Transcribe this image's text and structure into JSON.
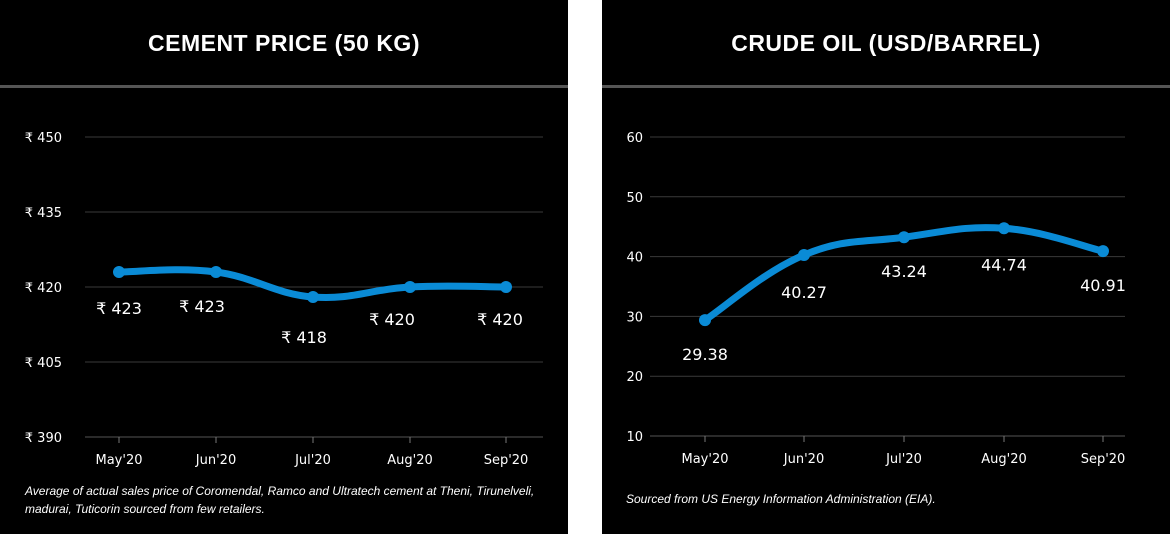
{
  "colors": {
    "line": "#0a8bd6",
    "grid": "#3a3a3a",
    "background": "#000000"
  },
  "charts": {
    "cement": {
      "title": "CEMENT PRICE (50 KG)",
      "note": "Average of actual sales price of Coromendal, Ramco and Ultratech cement at Theni, Tirunelveli, madurai, Tuticorin sourced from few retailers."
    },
    "oil": {
      "title": "CRUDE OIL (USD/BARREL)",
      "note": "Sourced from US Energy Information Administration (EIA)."
    }
  },
  "chart_data": [
    {
      "type": "line",
      "title": "CEMENT PRICE (50 KG)",
      "categories": [
        "May'20",
        "Jun'20",
        "Jul'20",
        "Aug'20",
        "Sep'20"
      ],
      "values": [
        423,
        423,
        418,
        420,
        420
      ],
      "data_labels": [
        "₹ 423",
        "₹ 423",
        "₹ 418",
        "₹ 420",
        "₹ 420"
      ],
      "yticks": [
        390,
        405,
        420,
        435,
        450
      ],
      "ytick_labels": [
        "₹ 390",
        "₹ 405",
        "₹ 420",
        "₹ 435",
        "₹ 450"
      ],
      "ylim": [
        390,
        450
      ],
      "grid": true,
      "legend": "none"
    },
    {
      "type": "line",
      "title": "CRUDE OIL (USD/BARREL)",
      "categories": [
        "May'20",
        "Jun'20",
        "Jul'20",
        "Aug'20",
        "Sep'20"
      ],
      "values": [
        29.38,
        40.27,
        43.24,
        44.74,
        40.91
      ],
      "data_labels": [
        "29.38",
        "40.27",
        "43.24",
        "44.74",
        "40.91"
      ],
      "yticks": [
        10,
        20,
        30,
        40,
        50,
        60
      ],
      "ytick_labels": [
        "10",
        "20",
        "30",
        "40",
        "50",
        "60"
      ],
      "ylim": [
        10,
        60
      ],
      "grid": true,
      "legend": "none"
    }
  ]
}
